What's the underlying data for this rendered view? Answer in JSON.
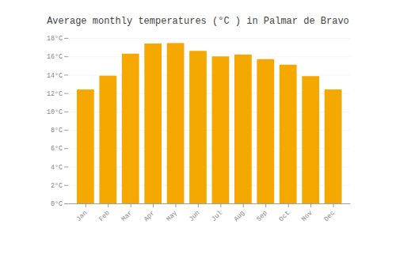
{
  "chart_data": {
    "type": "bar",
    "title": "Average monthly temperatures (°C ) in Palmar de Bravo",
    "categories": [
      "Jan",
      "Feb",
      "Mar",
      "Apr",
      "May",
      "Jun",
      "Jul",
      "Aug",
      "Sep",
      "Oct",
      "Nov",
      "Dec"
    ],
    "values": [
      12.4,
      13.9,
      16.3,
      17.4,
      17.45,
      16.6,
      16.0,
      16.2,
      15.7,
      15.1,
      13.85,
      12.4
    ],
    "color": "#F5A800",
    "ylim": [
      0,
      18
    ],
    "yticks": [
      {
        "value": 0,
        "label": "0°C"
      },
      {
        "value": 2,
        "label": "2°C"
      },
      {
        "value": 4,
        "label": "4°C"
      },
      {
        "value": 6,
        "label": "6°C"
      },
      {
        "value": 8,
        "label": "8°C"
      },
      {
        "value": 10,
        "label": "10°C"
      },
      {
        "value": 12,
        "label": "12°C"
      },
      {
        "value": 14,
        "label": "14°C"
      },
      {
        "value": 16,
        "label": "16°C"
      },
      {
        "value": 18,
        "label": "18°C"
      }
    ],
    "grid": true
  }
}
